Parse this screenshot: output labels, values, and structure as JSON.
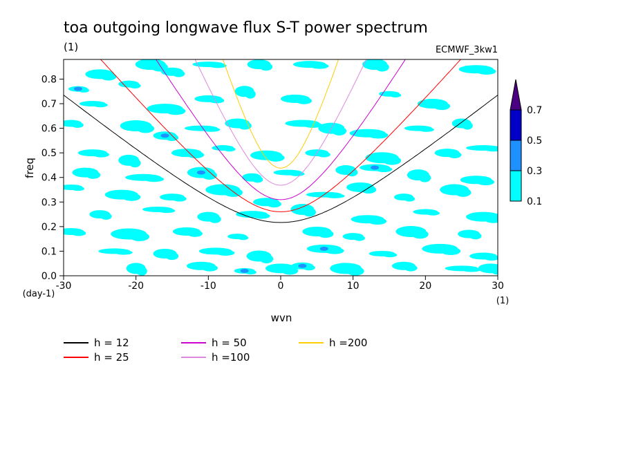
{
  "chart_data": {
    "type": "heatmap",
    "title": "toa outgoing longwave flux S-T power spectrum",
    "subtitle_left": "(1)",
    "subtitle_right": "ECMWF_3kw1",
    "xlabel": "wvn",
    "ylabel": "freq",
    "x_unit_label": "(1)",
    "y_unit_label": "(day-1)",
    "xlim": [
      -30,
      30
    ],
    "ylim": [
      0,
      0.88
    ],
    "x_ticks": [
      {
        "v": -30,
        "label": "-30"
      },
      {
        "v": -20,
        "label": "-20"
      },
      {
        "v": -10,
        "label": "-10"
      },
      {
        "v": 0,
        "label": "0"
      },
      {
        "v": 10,
        "label": "10"
      },
      {
        "v": 20,
        "label": "20"
      },
      {
        "v": 30,
        "label": "30"
      }
    ],
    "y_ticks": [
      {
        "v": 0,
        "label": "0.0"
      },
      {
        "v": 0.1,
        "label": "0.1"
      },
      {
        "v": 0.2,
        "label": "0.2"
      },
      {
        "v": 0.3,
        "label": "0.3"
      },
      {
        "v": 0.4,
        "label": "0.4"
      },
      {
        "v": 0.5,
        "label": "0.5"
      },
      {
        "v": 0.6,
        "label": "0.6"
      },
      {
        "v": 0.7,
        "label": "0.7"
      },
      {
        "v": 0.8,
        "label": "0.8"
      }
    ],
    "colorbar": {
      "levels": [
        {
          "value": 0.1,
          "label": "0.1"
        },
        {
          "value": 0.3,
          "label": "0.3"
        },
        {
          "value": 0.5,
          "label": "0.5"
        },
        {
          "value": 0.7,
          "label": "0.7"
        }
      ],
      "colors": [
        "#00ffff",
        "#1e90ff",
        "#0000c8",
        "#4b0082"
      ]
    },
    "contour_patches": [
      {
        "x": -28,
        "y": 0.76,
        "level": 1
      },
      {
        "x": -25,
        "y": 0.82,
        "level": 0
      },
      {
        "x": -21,
        "y": 0.78,
        "level": 0
      },
      {
        "x": -18,
        "y": 0.86,
        "level": 0
      },
      {
        "x": -15,
        "y": 0.83,
        "level": 0
      },
      {
        "x": -10,
        "y": 0.86,
        "level": 0
      },
      {
        "x": -3,
        "y": 0.86,
        "level": 0
      },
      {
        "x": 4,
        "y": 0.86,
        "level": 0
      },
      {
        "x": 13,
        "y": 0.86,
        "level": 0
      },
      {
        "x": 27,
        "y": 0.84,
        "level": 0
      },
      {
        "x": -26,
        "y": 0.7,
        "level": 0
      },
      {
        "x": -16,
        "y": 0.68,
        "level": 0
      },
      {
        "x": -10,
        "y": 0.72,
        "level": 0
      },
      {
        "x": -5,
        "y": 0.75,
        "level": 0
      },
      {
        "x": 2,
        "y": 0.72,
        "level": 0
      },
      {
        "x": 15,
        "y": 0.74,
        "level": 0
      },
      {
        "x": 21,
        "y": 0.7,
        "level": 0
      },
      {
        "x": -29,
        "y": 0.62,
        "level": 0
      },
      {
        "x": -20,
        "y": 0.61,
        "level": 0
      },
      {
        "x": -16,
        "y": 0.57,
        "level": 1
      },
      {
        "x": -11,
        "y": 0.6,
        "level": 0
      },
      {
        "x": -6,
        "y": 0.62,
        "level": 0
      },
      {
        "x": 3,
        "y": 0.62,
        "level": 0
      },
      {
        "x": 7,
        "y": 0.6,
        "level": 0
      },
      {
        "x": 12,
        "y": 0.58,
        "level": 0
      },
      {
        "x": 19,
        "y": 0.6,
        "level": 0
      },
      {
        "x": 25,
        "y": 0.62,
        "level": 0
      },
      {
        "x": -26,
        "y": 0.5,
        "level": 0
      },
      {
        "x": -21,
        "y": 0.47,
        "level": 0
      },
      {
        "x": -13,
        "y": 0.5,
        "level": 0
      },
      {
        "x": -8,
        "y": 0.52,
        "level": 0
      },
      {
        "x": -2,
        "y": 0.49,
        "level": 0
      },
      {
        "x": 5,
        "y": 0.5,
        "level": 0
      },
      {
        "x": 14,
        "y": 0.48,
        "level": 0
      },
      {
        "x": 23,
        "y": 0.5,
        "level": 0
      },
      {
        "x": 28,
        "y": 0.52,
        "level": 0
      },
      {
        "x": -27,
        "y": 0.42,
        "level": 0
      },
      {
        "x": -19,
        "y": 0.4,
        "level": 0
      },
      {
        "x": -11,
        "y": 0.42,
        "level": 1
      },
      {
        "x": -4,
        "y": 0.4,
        "level": 0
      },
      {
        "x": 1,
        "y": 0.42,
        "level": 0
      },
      {
        "x": 9,
        "y": 0.43,
        "level": 0
      },
      {
        "x": 13,
        "y": 0.44,
        "level": 1
      },
      {
        "x": 19,
        "y": 0.41,
        "level": 0
      },
      {
        "x": 27,
        "y": 0.39,
        "level": 0
      },
      {
        "x": -29,
        "y": 0.36,
        "level": 0
      },
      {
        "x": -22,
        "y": 0.33,
        "level": 0
      },
      {
        "x": -15,
        "y": 0.32,
        "level": 0
      },
      {
        "x": -8,
        "y": 0.35,
        "level": 0
      },
      {
        "x": -2,
        "y": 0.3,
        "level": 0
      },
      {
        "x": 6,
        "y": 0.33,
        "level": 0
      },
      {
        "x": 11,
        "y": 0.36,
        "level": 0
      },
      {
        "x": 17,
        "y": 0.32,
        "level": 0
      },
      {
        "x": 24,
        "y": 0.35,
        "level": 0
      },
      {
        "x": -25,
        "y": 0.25,
        "level": 0
      },
      {
        "x": -17,
        "y": 0.27,
        "level": 0
      },
      {
        "x": -10,
        "y": 0.24,
        "level": 0
      },
      {
        "x": -4,
        "y": 0.25,
        "level": 0
      },
      {
        "x": 3,
        "y": 0.27,
        "level": 0
      },
      {
        "x": 12,
        "y": 0.23,
        "level": 0
      },
      {
        "x": 20,
        "y": 0.26,
        "level": 0
      },
      {
        "x": 28,
        "y": 0.24,
        "level": 0
      },
      {
        "x": -29,
        "y": 0.18,
        "level": 0
      },
      {
        "x": -21,
        "y": 0.17,
        "level": 0
      },
      {
        "x": -13,
        "y": 0.18,
        "level": 0
      },
      {
        "x": -6,
        "y": 0.16,
        "level": 0
      },
      {
        "x": 5,
        "y": 0.18,
        "level": 0
      },
      {
        "x": 10,
        "y": 0.16,
        "level": 0
      },
      {
        "x": 18,
        "y": 0.18,
        "level": 0
      },
      {
        "x": 26,
        "y": 0.17,
        "level": 0
      },
      {
        "x": -23,
        "y": 0.1,
        "level": 0
      },
      {
        "x": -16,
        "y": 0.09,
        "level": 0
      },
      {
        "x": -9,
        "y": 0.1,
        "level": 0
      },
      {
        "x": -3,
        "y": 0.08,
        "level": 0
      },
      {
        "x": 6,
        "y": 0.11,
        "level": 1
      },
      {
        "x": 14,
        "y": 0.09,
        "level": 0
      },
      {
        "x": 22,
        "y": 0.11,
        "level": 0
      },
      {
        "x": 28,
        "y": 0.08,
        "level": 0
      },
      {
        "x": -20,
        "y": 0.03,
        "level": 0
      },
      {
        "x": -11,
        "y": 0.04,
        "level": 0
      },
      {
        "x": -5,
        "y": 0.02,
        "level": 1
      },
      {
        "x": 0,
        "y": 0.03,
        "level": 0
      },
      {
        "x": 3,
        "y": 0.04,
        "level": 1
      },
      {
        "x": 9,
        "y": 0.03,
        "level": 0
      },
      {
        "x": 17,
        "y": 0.04,
        "level": 0
      },
      {
        "x": 25,
        "y": 0.03,
        "level": 0
      },
      {
        "x": 29,
        "y": 0.03,
        "level": 0
      }
    ],
    "dispersion_curves": [
      {
        "name": "h = 12",
        "h": 12,
        "color": "#000000"
      },
      {
        "name": "h = 25",
        "h": 25,
        "color": "#ff0000"
      },
      {
        "name": "h = 50",
        "h": 50,
        "color": "#cc00cc"
      },
      {
        "name": "h =100",
        "h": 100,
        "color": "#dd88dd"
      },
      {
        "name": "h =200",
        "h": 200,
        "color": "#ffcc00"
      }
    ],
    "legend": [
      {
        "label": "h = 12",
        "color": "#000000"
      },
      {
        "label": "h = 25",
        "color": "#ff0000"
      },
      {
        "label": "h = 50",
        "color": "#cc00cc"
      },
      {
        "label": "h =100",
        "color": "#dd88dd"
      },
      {
        "label": "h =200",
        "color": "#ffcc00"
      }
    ]
  }
}
